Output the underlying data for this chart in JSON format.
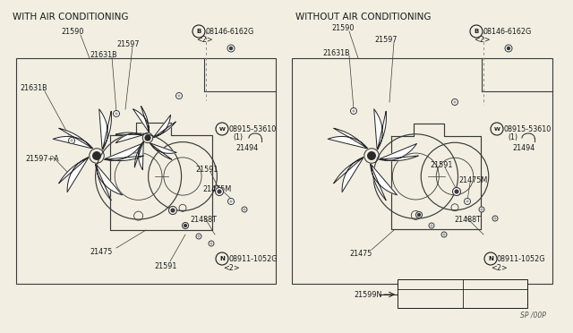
{
  "bg_color": "#f2efe2",
  "line_color": "#4a4a4a",
  "left_title": "WITH AIR CONDITIONING",
  "right_title": "WITHOUT AIR CONDITIONING",
  "page_ref": "SP /00P",
  "font_size_title": 7.5,
  "font_size_label": 5.8
}
